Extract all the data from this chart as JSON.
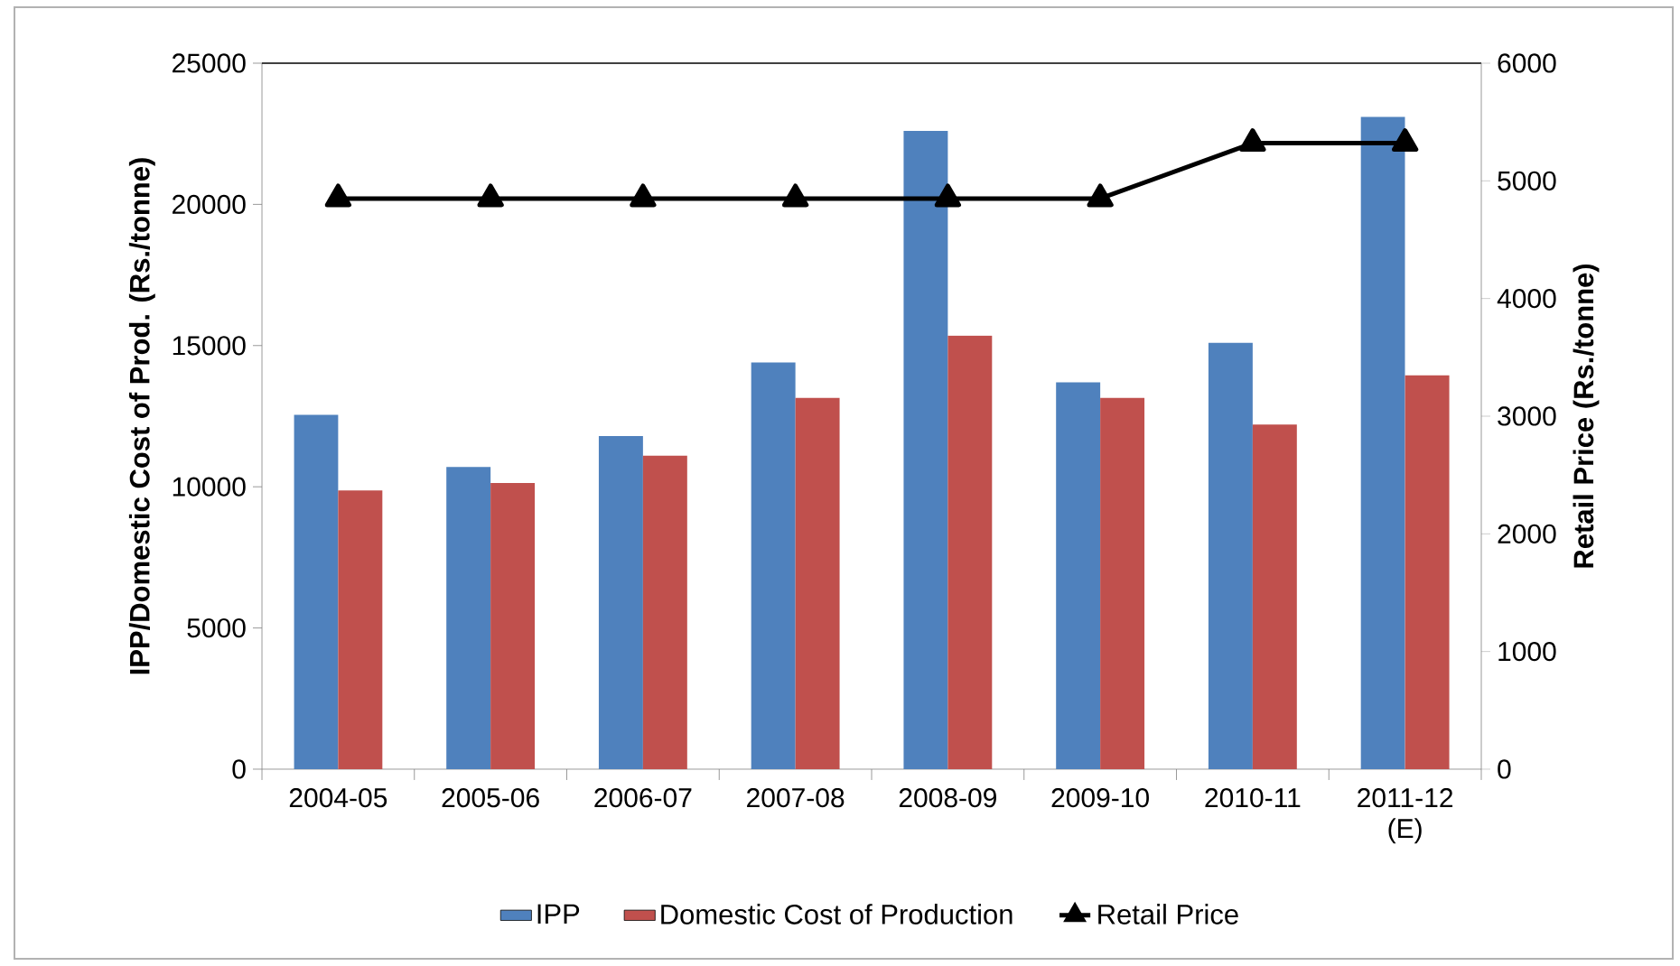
{
  "chart_data": {
    "type": "bar",
    "categories": [
      "2004-05",
      "2005-06",
      "2006-07",
      "2007-08",
      "2008-09",
      "2009-10",
      "2010-11",
      "2011-12 (E)"
    ],
    "series": [
      {
        "name": "IPP",
        "color": "#4f81bd",
        "values": [
          12550,
          10700,
          11800,
          14400,
          22600,
          13700,
          15100,
          23100
        ]
      },
      {
        "name": "Domestic Cost of Production",
        "color": "#c0504d",
        "values": [
          9870,
          10130,
          11100,
          13150,
          15350,
          13150,
          12200,
          13950
        ]
      },
      {
        "name": "Retail Price",
        "type": "line",
        "axis": "y2",
        "color": "#000000",
        "marker": "triangle",
        "line_style": "solid",
        "values": [
          4850,
          4850,
          4850,
          4850,
          4850,
          4850,
          5320,
          5320
        ]
      }
    ],
    "ylabel": "IPP/Domestic Cost of Prod. (Rs./tonne)",
    "y2label": "Retail Price (Rs./tonne)",
    "ylim": [
      0,
      25000
    ],
    "yticks": [
      0,
      5000,
      10000,
      15000,
      20000,
      25000
    ],
    "y2lim": [
      0,
      6000
    ],
    "y2ticks": [
      0,
      1000,
      2000,
      3000,
      4000,
      5000,
      6000
    ],
    "grid": false,
    "legend": "bottom"
  }
}
